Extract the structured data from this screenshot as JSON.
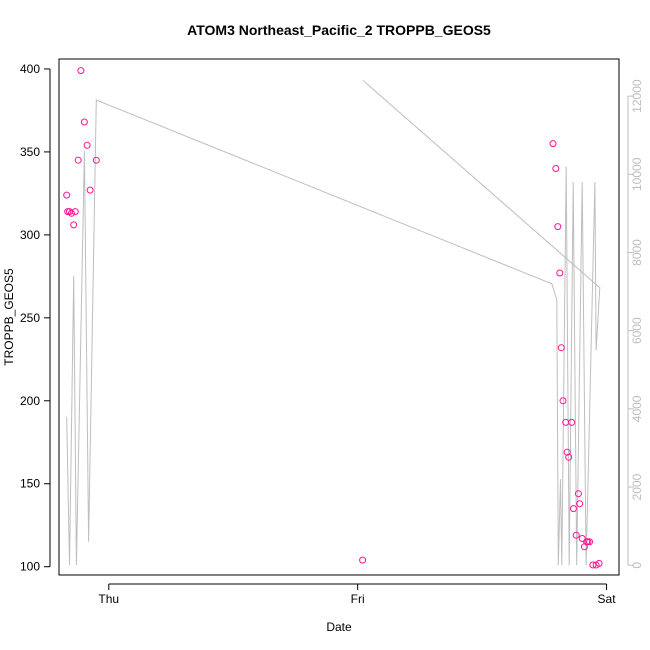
{
  "chart_data": {
    "type": "scatter",
    "title": "ATOM3 Northeast_Pacific_2 TROPPB_GEOS5",
    "xlabel": "Date",
    "ylabel": "TROPPB_GEOS5",
    "x_ticks": [
      {
        "label": "Thu",
        "value": 0
      },
      {
        "label": "Fri",
        "value": 1
      },
      {
        "label": "Sat",
        "value": 2
      }
    ],
    "xlim": [
      -0.2,
      2.05
    ],
    "y_ticks": [
      100,
      150,
      200,
      250,
      300,
      350,
      400
    ],
    "ylim": [
      95,
      406
    ],
    "y2_ticks": [
      0,
      2000,
      4000,
      6000,
      8000,
      10000,
      12000
    ],
    "y2lim": [
      -250,
      12950
    ],
    "grid": false,
    "series": [
      {
        "axis": "left",
        "style": "points",
        "color": "#ff1493",
        "points": [
          [
            -0.169,
            324
          ],
          [
            -0.165,
            314
          ],
          [
            -0.158,
            314
          ],
          [
            -0.15,
            313
          ],
          [
            -0.141,
            306
          ],
          [
            -0.135,
            314
          ],
          [
            -0.123,
            345
          ],
          [
            -0.112,
            399
          ],
          [
            -0.098,
            368
          ],
          [
            -0.087,
            354
          ],
          [
            -0.075,
            327
          ],
          [
            -0.05,
            345
          ],
          [
            1.02,
            104
          ],
          [
            1.785,
            355
          ],
          [
            1.796,
            340
          ],
          [
            1.804,
            305
          ],
          [
            1.812,
            277
          ],
          [
            1.818,
            232
          ],
          [
            1.825,
            200
          ],
          [
            1.836,
            187
          ],
          [
            1.842,
            169
          ],
          [
            1.848,
            166
          ],
          [
            1.86,
            187
          ],
          [
            1.867,
            135
          ],
          [
            1.878,
            119
          ],
          [
            1.887,
            144
          ],
          [
            1.892,
            138
          ],
          [
            1.902,
            117
          ],
          [
            1.911,
            112
          ],
          [
            1.92,
            115
          ],
          [
            1.925,
            115
          ],
          [
            1.932,
            115
          ],
          [
            1.945,
            101
          ],
          [
            1.958,
            101
          ],
          [
            1.97,
            102
          ]
        ]
      },
      {
        "axis": "right",
        "style": "line",
        "color": "#bebebe",
        "points": [
          [
            -0.169,
            3800
          ],
          [
            -0.158,
            0
          ],
          [
            -0.141,
            7400
          ],
          [
            -0.13,
            0
          ],
          [
            -0.098,
            10600
          ],
          [
            -0.081,
            600
          ],
          [
            -0.05,
            11900
          ],
          [
            1.78,
            7200
          ],
          [
            1.8,
            6800
          ],
          [
            1.806,
            0
          ],
          [
            1.815,
            2200
          ],
          [
            1.82,
            0
          ],
          [
            1.838,
            10200
          ],
          [
            1.85,
            0
          ],
          [
            1.866,
            9800
          ],
          [
            1.88,
            0
          ],
          [
            1.902,
            9800
          ],
          [
            1.918,
            0
          ],
          [
            1.953,
            9800
          ],
          [
            1.958,
            5500
          ],
          [
            1.973,
            7100
          ],
          [
            1.022,
            12400
          ]
        ]
      }
    ]
  }
}
